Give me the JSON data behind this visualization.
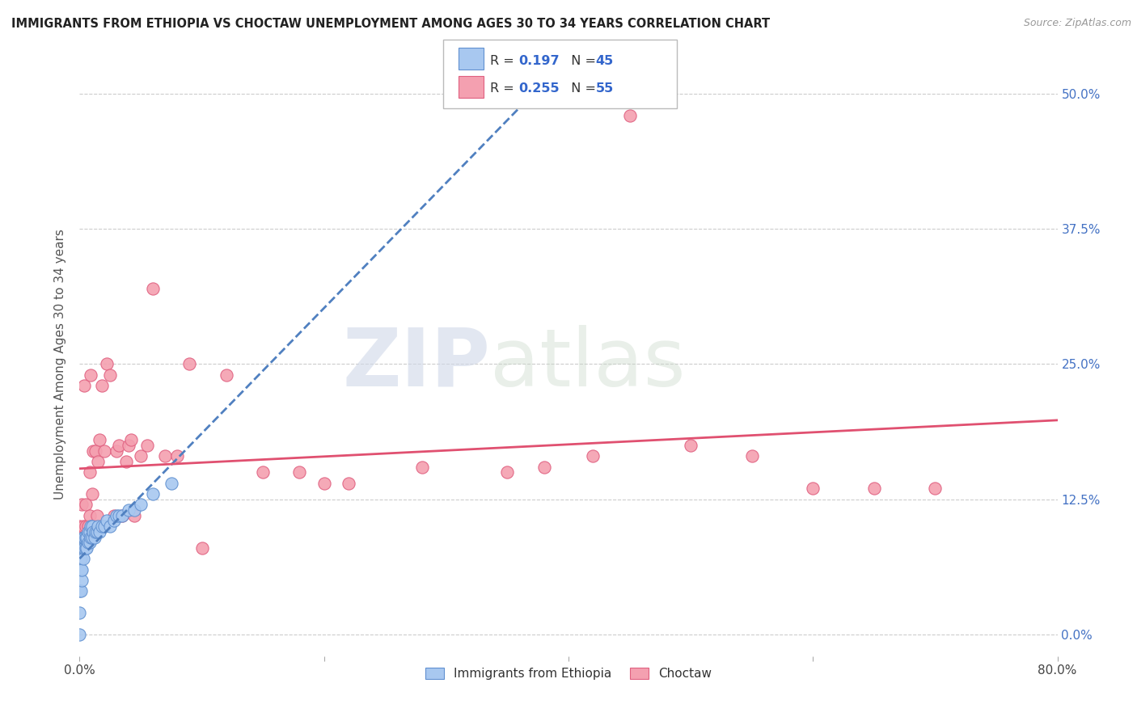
{
  "title": "IMMIGRANTS FROM ETHIOPIA VS CHOCTAW UNEMPLOYMENT AMONG AGES 30 TO 34 YEARS CORRELATION CHART",
  "source": "Source: ZipAtlas.com",
  "ylabel": "Unemployment Among Ages 30 to 34 years",
  "xlim": [
    0.0,
    0.8
  ],
  "ylim": [
    -0.02,
    0.52
  ],
  "ethiopia_color": "#A8C8F0",
  "ethiopia_edge": "#6090D0",
  "choctaw_color": "#F4A0B0",
  "choctaw_edge": "#E06080",
  "trend_ethiopia_color": "#5080C0",
  "trend_choctaw_color": "#E05070",
  "R_ethiopia": 0.197,
  "N_ethiopia": 45,
  "R_choctaw": 0.255,
  "N_choctaw": 55,
  "legend_label_1": "Immigrants from Ethiopia",
  "legend_label_2": "Choctaw",
  "watermark_zip": "ZIP",
  "watermark_atlas": "atlas",
  "ethiopia_x": [
    0.0,
    0.0,
    0.0,
    0.001,
    0.001,
    0.001,
    0.002,
    0.002,
    0.002,
    0.003,
    0.003,
    0.003,
    0.004,
    0.004,
    0.005,
    0.005,
    0.006,
    0.006,
    0.007,
    0.007,
    0.008,
    0.008,
    0.009,
    0.009,
    0.01,
    0.01,
    0.011,
    0.012,
    0.013,
    0.014,
    0.015,
    0.016,
    0.018,
    0.02,
    0.022,
    0.025,
    0.028,
    0.03,
    0.032,
    0.035,
    0.04,
    0.045,
    0.05,
    0.06,
    0.075
  ],
  "ethiopia_y": [
    0.0,
    0.02,
    0.04,
    0.04,
    0.06,
    0.07,
    0.05,
    0.08,
    0.06,
    0.07,
    0.08,
    0.09,
    0.08,
    0.09,
    0.08,
    0.09,
    0.08,
    0.09,
    0.085,
    0.095,
    0.085,
    0.095,
    0.09,
    0.1,
    0.09,
    0.1,
    0.095,
    0.09,
    0.095,
    0.095,
    0.1,
    0.095,
    0.1,
    0.1,
    0.105,
    0.1,
    0.105,
    0.11,
    0.11,
    0.11,
    0.115,
    0.115,
    0.12,
    0.13,
    0.14
  ],
  "choctaw_x": [
    0.0,
    0.001,
    0.002,
    0.002,
    0.003,
    0.004,
    0.005,
    0.005,
    0.006,
    0.007,
    0.008,
    0.008,
    0.009,
    0.01,
    0.01,
    0.011,
    0.012,
    0.013,
    0.014,
    0.015,
    0.016,
    0.018,
    0.02,
    0.022,
    0.025,
    0.028,
    0.03,
    0.032,
    0.035,
    0.038,
    0.04,
    0.042,
    0.045,
    0.05,
    0.055,
    0.06,
    0.07,
    0.08,
    0.09,
    0.1,
    0.12,
    0.15,
    0.18,
    0.2,
    0.22,
    0.28,
    0.35,
    0.38,
    0.42,
    0.45,
    0.5,
    0.55,
    0.6,
    0.65,
    0.7
  ],
  "choctaw_y": [
    0.1,
    0.08,
    0.09,
    0.12,
    0.1,
    0.23,
    0.1,
    0.12,
    0.09,
    0.1,
    0.11,
    0.15,
    0.24,
    0.095,
    0.13,
    0.17,
    0.1,
    0.17,
    0.11,
    0.16,
    0.18,
    0.23,
    0.17,
    0.25,
    0.24,
    0.11,
    0.17,
    0.175,
    0.11,
    0.16,
    0.175,
    0.18,
    0.11,
    0.165,
    0.175,
    0.32,
    0.165,
    0.165,
    0.25,
    0.08,
    0.24,
    0.15,
    0.15,
    0.14,
    0.14,
    0.155,
    0.15,
    0.155,
    0.165,
    0.48,
    0.175,
    0.165,
    0.135,
    0.135,
    0.135
  ]
}
